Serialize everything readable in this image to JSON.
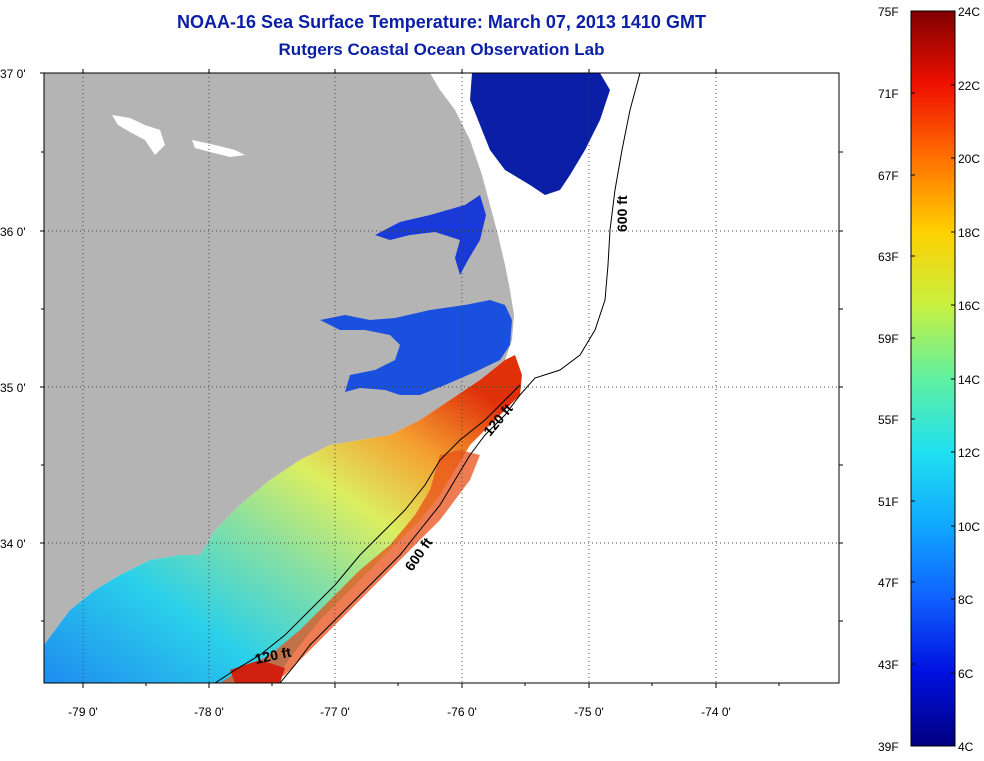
{
  "title": "NOAA-16 Sea Surface Temperature:  March 07, 2013 1410 GMT",
  "subtitle": "Rutgers Coastal Ocean Observation Lab",
  "map": {
    "latitude_labels": [
      "37 0'",
      "36 0'",
      "35 0'",
      "34 0'"
    ],
    "longitude_labels": [
      "-79 0'",
      "-78 0'",
      "-77 0'",
      "-76 0'",
      "-75 0'",
      "-74 0'"
    ],
    "depth_labels": [
      "600 ft",
      "600 ft",
      "120 ft",
      "120 ft"
    ],
    "colors": {
      "land": "#b4b4b4",
      "ocean_no_data": "#ffffff"
    }
  },
  "colorbar": {
    "fahrenheit_labels": [
      "75F",
      "71F",
      "67F",
      "63F",
      "59F",
      "55F",
      "51F",
      "47F",
      "43F",
      "39F"
    ],
    "celsius_labels": [
      "24C",
      "22C",
      "20C",
      "18C",
      "16C",
      "14C",
      "12C",
      "10C",
      "8C",
      "6C",
      "4C"
    ]
  }
}
